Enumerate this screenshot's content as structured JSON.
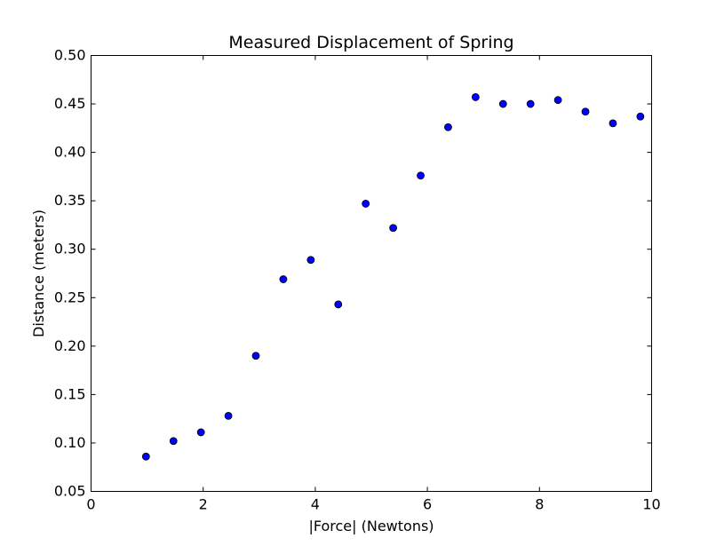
{
  "chart_data": {
    "type": "scatter",
    "title": "Measured Displacement of Spring",
    "xlabel": "|Force| (Newtons)",
    "ylabel": "Distance (meters)",
    "xlim": [
      0,
      10
    ],
    "ylim": [
      0.05,
      0.5
    ],
    "xticks": [
      0,
      2,
      4,
      6,
      8,
      10
    ],
    "yticks": [
      0.05,
      0.1,
      0.15,
      0.2,
      0.25,
      0.3,
      0.35,
      0.4,
      0.45,
      0.5
    ],
    "xtick_labels": [
      "0",
      "2",
      "4",
      "6",
      "8",
      "10"
    ],
    "ytick_labels": [
      "0.05",
      "0.10",
      "0.15",
      "0.20",
      "0.25",
      "0.30",
      "0.35",
      "0.40",
      "0.45",
      "0.50"
    ],
    "grid": false,
    "marker_color": "#0000ff",
    "series": [
      {
        "x": [
          0.98,
          1.47,
          1.96,
          2.45,
          2.94,
          3.43,
          3.92,
          4.41,
          4.9,
          5.39,
          5.88,
          6.37,
          6.86,
          7.35,
          7.84,
          8.33,
          8.82,
          9.31,
          9.8
        ],
        "y": [
          0.086,
          0.102,
          0.111,
          0.128,
          0.19,
          0.269,
          0.289,
          0.243,
          0.347,
          0.322,
          0.376,
          0.426,
          0.457,
          0.45,
          0.45,
          0.454,
          0.442,
          0.43,
          0.437
        ]
      }
    ]
  }
}
